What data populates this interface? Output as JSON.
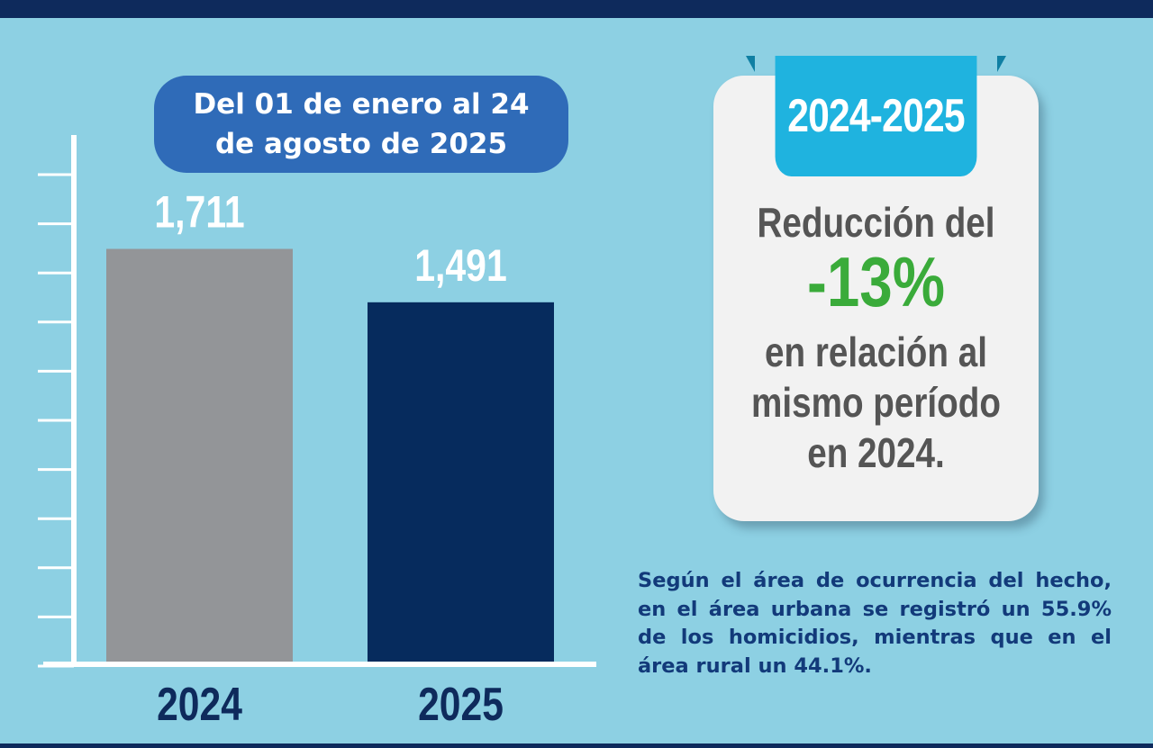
{
  "header": {
    "date_range": "Del 01 de enero al 24 de agosto de 2025"
  },
  "chart_data": {
    "type": "bar",
    "categories": [
      "2024",
      "2025"
    ],
    "values": [
      1711,
      1491
    ],
    "value_labels": [
      "1,711",
      "1,491"
    ],
    "colors": [
      "#939598",
      "#062b5d"
    ],
    "title": "",
    "xlabel": "",
    "ylabel": "",
    "ylim": [
      0,
      2180
    ],
    "grid": false
  },
  "card": {
    "ribbon": "2024-2025",
    "line1": "Reducción del",
    "percent": "-13%",
    "line2": "en relación al",
    "line3": "mismo período",
    "line4": "en 2024."
  },
  "note": "Según el área de ocurrencia del hecho, en el área urbana se registró un 55.9% de los homicidios, mientras que en el área rural  un 44.1%.",
  "colors": {
    "background": "#8dd0e3",
    "navy": "#0e2a5c",
    "accent_blue": "#2f6bb8",
    "ribbon": "#1fb3df",
    "highlight_green": "#3aab3a"
  }
}
